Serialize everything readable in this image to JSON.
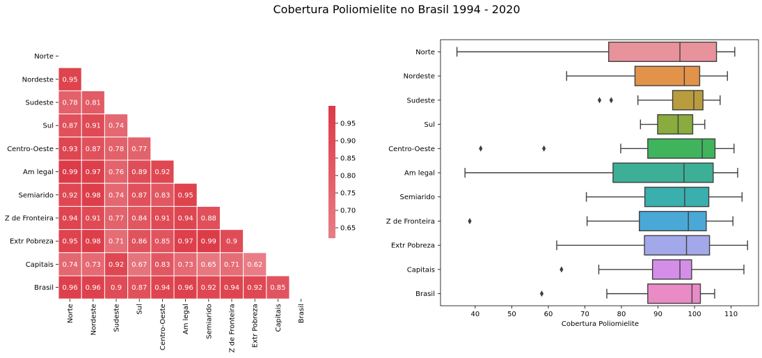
{
  "title": "Cobertura Poliomielite no Brasil 1994 - 2020",
  "chart_data": [
    {
      "type": "heatmap",
      "title": "",
      "labels": [
        "Norte",
        "Nordeste",
        "Sudeste",
        "Sul",
        "Centro-Oeste",
        "Am legal",
        "Semiarido",
        "Z de Fronteira",
        "Extr Pobreza",
        "Capitais",
        "Brasil"
      ],
      "matrix": [
        [],
        [
          0.95
        ],
        [
          0.78,
          0.81
        ],
        [
          0.87,
          0.91,
          0.74
        ],
        [
          0.93,
          0.87,
          0.78,
          0.77
        ],
        [
          0.99,
          0.97,
          0.76,
          0.89,
          0.92
        ],
        [
          0.92,
          0.98,
          0.74,
          0.87,
          0.83,
          0.95
        ],
        [
          0.94,
          0.91,
          0.77,
          0.84,
          0.91,
          0.94,
          0.88
        ],
        [
          0.95,
          0.98,
          0.71,
          0.86,
          0.85,
          0.97,
          0.99,
          0.9
        ],
        [
          0.74,
          0.73,
          0.92,
          0.67,
          0.83,
          0.73,
          0.65,
          0.71,
          0.62
        ],
        [
          0.96,
          0.96,
          0.9,
          0.87,
          0.94,
          0.96,
          0.92,
          0.94,
          0.92,
          0.85
        ]
      ],
      "colorbar": {
        "range": [
          0.62,
          1.0
        ],
        "ticks": [
          "0.65",
          "0.70",
          "0.75",
          "0.80",
          "0.85",
          "0.90",
          "0.95"
        ],
        "color_low": "#e87d85",
        "color_high": "#dc3a46"
      }
    },
    {
      "type": "boxplot",
      "xlabel": "Cobertura Poliomielite",
      "ylabel": "",
      "xlim": [
        30.5,
        117.5
      ],
      "xticks": [
        40,
        50,
        60,
        70,
        80,
        90,
        100,
        110
      ],
      "series": [
        {
          "name": "Norte",
          "color": "#e8929b",
          "whisker_low": 35,
          "q1": 76.5,
          "median": 96,
          "q3": 106,
          "whisker_high": 111,
          "outliers": []
        },
        {
          "name": "Nordeste",
          "color": "#e3924a",
          "whisker_low": 65,
          "q1": 83.7,
          "median": 97.2,
          "q3": 101.4,
          "whisker_high": 109,
          "outliers": []
        },
        {
          "name": "Sudeste",
          "color": "#b89c3e",
          "whisker_low": 84.5,
          "q1": 94,
          "median": 99.8,
          "q3": 102.3,
          "whisker_high": 107,
          "outliers": [
            74,
            77.2
          ]
        },
        {
          "name": "Sul",
          "color": "#8aab3d",
          "whisker_low": 85.2,
          "q1": 89.9,
          "median": 95.5,
          "q3": 99.5,
          "whisker_high": 102.8,
          "outliers": []
        },
        {
          "name": "Centro-Oeste",
          "color": "#3fb45c",
          "whisker_low": 79.8,
          "q1": 87.2,
          "median": 102.1,
          "q3": 105.6,
          "whisker_high": 110.8,
          "outliers": [
            41.5,
            58.8
          ]
        },
        {
          "name": "Am legal",
          "color": "#3caf96",
          "whisker_low": 37.2,
          "q1": 77.7,
          "median": 97.1,
          "q3": 105.1,
          "whisker_high": 111.8,
          "outliers": []
        },
        {
          "name": "Semiarido",
          "color": "#3baeae",
          "whisker_low": 70.4,
          "q1": 86.4,
          "median": 97.3,
          "q3": 103.9,
          "whisker_high": 113,
          "outliers": []
        },
        {
          "name": "Z de Fronteira",
          "color": "#4aa8d6",
          "whisker_low": 70.6,
          "q1": 84.9,
          "median": 98.3,
          "q3": 103.2,
          "whisker_high": 110.5,
          "outliers": [
            38.5
          ]
        },
        {
          "name": "Extr Pobreza",
          "color": "#a2a8ea",
          "whisker_low": 62.3,
          "q1": 86.3,
          "median": 97.8,
          "q3": 104.1,
          "whisker_high": 114.5,
          "outliers": []
        },
        {
          "name": "Capitais",
          "color": "#d58ee8",
          "whisker_low": 73.8,
          "q1": 88.5,
          "median": 96,
          "q3": 99.2,
          "whisker_high": 113.5,
          "outliers": [
            63.6
          ]
        },
        {
          "name": "Brasil",
          "color": "#e98cc6",
          "whisker_low": 76,
          "q1": 87.2,
          "median": 99.3,
          "q3": 101.6,
          "whisker_high": 105.5,
          "outliers": [
            58.2
          ]
        }
      ]
    }
  ]
}
